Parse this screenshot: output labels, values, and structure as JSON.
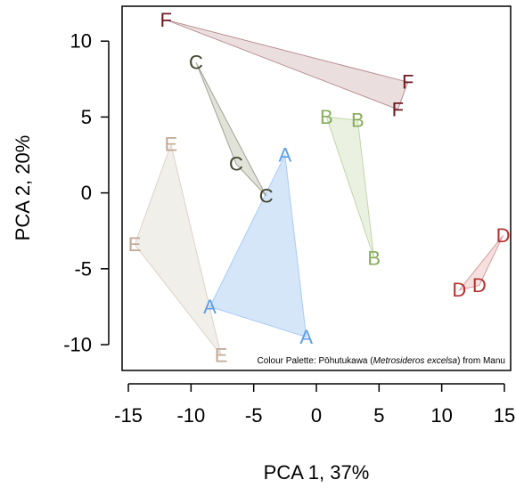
{
  "chart_data": {
    "type": "scatter",
    "xlabel": "PCA 1, 37%",
    "ylabel": "PCA 2, 20%",
    "xlim": [
      -15.5,
      15.5
    ],
    "ylim": [
      -11.7,
      12.3
    ],
    "xticks": [
      -15,
      -10,
      -5,
      0,
      5,
      10,
      15
    ],
    "xtick_labels": [
      "-15",
      "-10",
      "-5",
      "0",
      "5",
      "10",
      "15"
    ],
    "yticks": [
      -10,
      -5,
      0,
      5,
      10
    ],
    "ytick_labels": [
      "-10",
      "-5",
      "0",
      "5",
      "10"
    ],
    "grid": false,
    "legend": "none",
    "caption": {
      "prefix": "Colour Palette: Pōhutukawa (",
      "italic": "Metrosideros excelsa",
      "suffix": ") from Manu"
    },
    "series": [
      {
        "name": "A",
        "color": "#5b9ee8",
        "fill": "#cfe2f8",
        "points": [
          {
            "x": -2.5,
            "y": 2.5
          },
          {
            "x": -8.5,
            "y": -7.5
          },
          {
            "x": -0.8,
            "y": -9.5
          }
        ]
      },
      {
        "name": "B",
        "color": "#86ad5a",
        "fill": "#e6eedb",
        "points": [
          {
            "x": 0.8,
            "y": 5.0
          },
          {
            "x": 3.3,
            "y": 4.8
          },
          {
            "x": 4.6,
            "y": -4.3
          }
        ]
      },
      {
        "name": "C",
        "color": "#40452d",
        "fill": "#dcded2",
        "points": [
          {
            "x": -9.6,
            "y": 8.6
          },
          {
            "x": -6.4,
            "y": 1.9
          },
          {
            "x": -4.0,
            "y": -0.2
          }
        ]
      },
      {
        "name": "D",
        "color": "#b3302f",
        "fill": "#f3dada",
        "points": [
          {
            "x": 14.9,
            "y": -2.8
          },
          {
            "x": 11.4,
            "y": -6.4
          },
          {
            "x": 13.0,
            "y": -6.1
          }
        ]
      },
      {
        "name": "E",
        "color": "#c0a895",
        "fill": "#eeece5",
        "points": [
          {
            "x": -11.6,
            "y": 3.2
          },
          {
            "x": -14.5,
            "y": -3.4
          },
          {
            "x": -7.6,
            "y": -10.7
          }
        ]
      },
      {
        "name": "F",
        "color": "#6b1b21",
        "fill": "#e8d8d9",
        "points": [
          {
            "x": -12.0,
            "y": 11.4
          },
          {
            "x": 7.3,
            "y": 7.3
          },
          {
            "x": 6.5,
            "y": 5.5
          }
        ]
      }
    ]
  }
}
